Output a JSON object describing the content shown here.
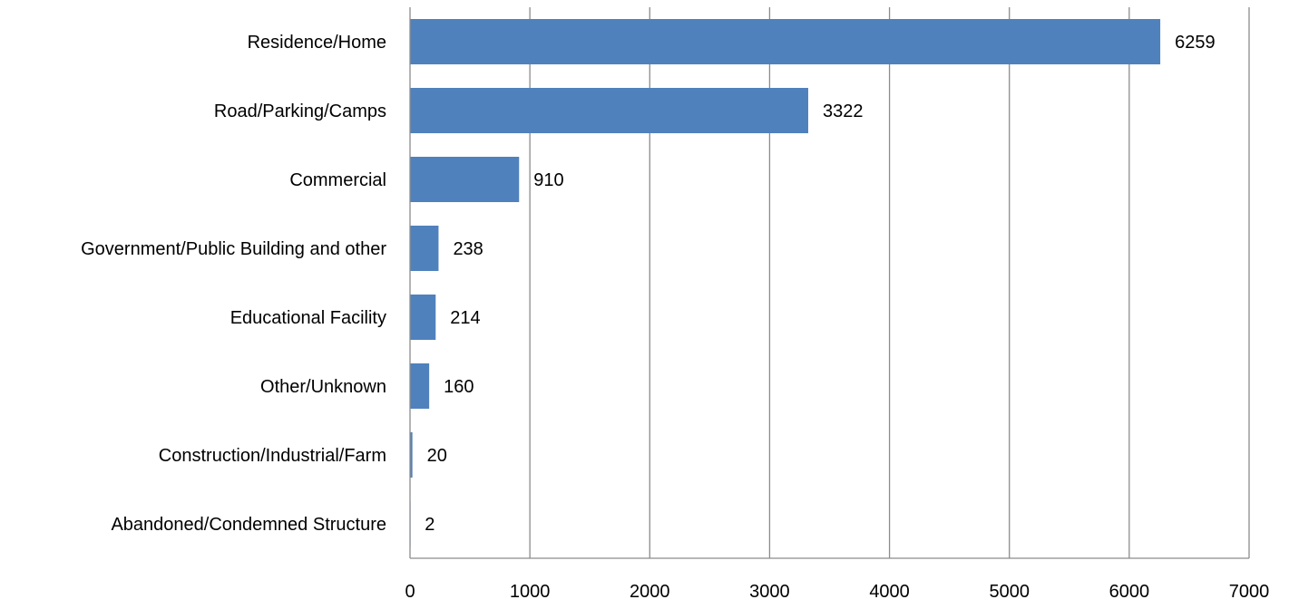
{
  "chart_data": {
    "type": "bar",
    "orientation": "horizontal",
    "title": "",
    "xlabel": "",
    "ylabel": "",
    "categories": [
      "Residence/Home",
      "Road/Parking/Camps",
      "Commercial",
      "Government/Public Building and other",
      "Educational Facility",
      "Other/Unknown",
      "Construction/Industrial/Farm",
      "Abandoned/Condemned Structure"
    ],
    "values": [
      6259,
      3322,
      910,
      238,
      214,
      160,
      20,
      2
    ],
    "value_labels": [
      "6259",
      "3322",
      "910",
      "238",
      "214",
      "160",
      "20",
      "2"
    ],
    "xlim": [
      0,
      7000
    ],
    "x_ticks": [
      0,
      1000,
      2000,
      3000,
      4000,
      5000,
      6000,
      7000
    ],
    "x_tick_labels": [
      "0",
      "1000",
      "2000",
      "3000",
      "4000",
      "5000",
      "6000",
      "7000"
    ],
    "grid": "vertical",
    "legend": "none",
    "colors": {
      "bar": "#4f81bd",
      "grid": "#8c8c8c",
      "axis": "#8c8c8c"
    }
  }
}
